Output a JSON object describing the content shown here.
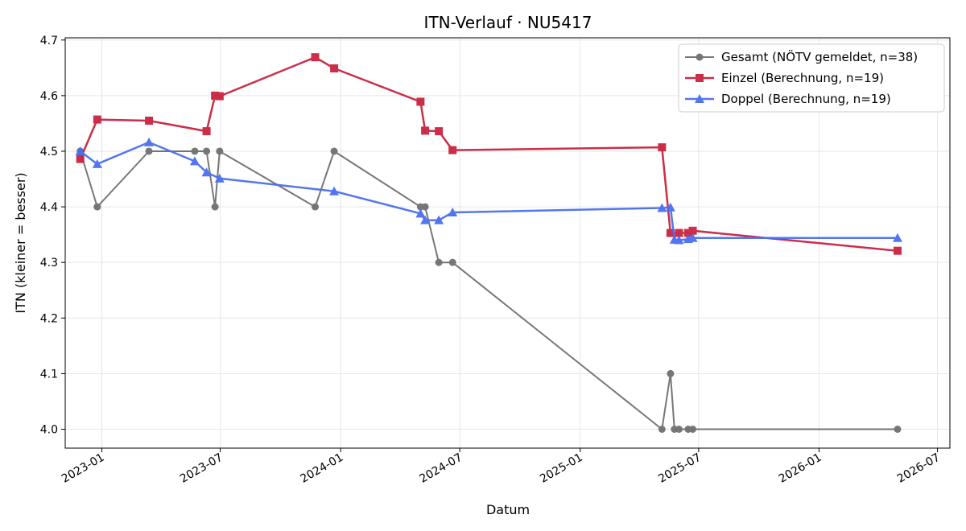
{
  "chart_data": {
    "type": "line",
    "title": "ITN-Verlauf · NU5417",
    "xlabel": "Datum",
    "ylabel": "ITN  (kleiner = besser)",
    "x_axis": "date",
    "xlim": [
      "2022-11-06",
      "2026-07-20"
    ],
    "ylim": [
      3.966,
      4.704
    ],
    "x_ticks": [
      {
        "date": "2023-01-01",
        "label": "2023-01"
      },
      {
        "date": "2023-07-01",
        "label": "2023-07"
      },
      {
        "date": "2024-01-01",
        "label": "2024-01"
      },
      {
        "date": "2024-07-01",
        "label": "2024-07"
      },
      {
        "date": "2025-01-01",
        "label": "2025-01"
      },
      {
        "date": "2025-07-01",
        "label": "2025-07"
      },
      {
        "date": "2026-01-01",
        "label": "2026-01"
      },
      {
        "date": "2026-07-01",
        "label": "2026-07"
      }
    ],
    "y_ticks": [
      {
        "value": 4.0,
        "label": "4.0"
      },
      {
        "value": 4.1,
        "label": "4.1"
      },
      {
        "value": 4.2,
        "label": "4.2"
      },
      {
        "value": 4.3,
        "label": "4.3"
      },
      {
        "value": 4.4,
        "label": "4.4"
      },
      {
        "value": 4.5,
        "label": "4.5"
      },
      {
        "value": 4.6,
        "label": "4.6"
      },
      {
        "value": 4.7,
        "label": "4.7"
      }
    ],
    "grid": true,
    "legend_position": "top-right",
    "series": [
      {
        "name": "Gesamt (NÖTV gemeldet, n=38)",
        "color": "#4a4a4a",
        "marker": "circle",
        "points": [
          {
            "x": "2022-11-29",
            "y": 4.5
          },
          {
            "x": "2022-12-25",
            "y": 4.4
          },
          {
            "x": "2023-03-14",
            "y": 4.5
          },
          {
            "x": "2023-05-23",
            "y": 4.5
          },
          {
            "x": "2023-06-10",
            "y": 4.5
          },
          {
            "x": "2023-06-23",
            "y": 4.4
          },
          {
            "x": "2023-06-30",
            "y": 4.5
          },
          {
            "x": "2023-11-23",
            "y": 4.4
          },
          {
            "x": "2023-12-22",
            "y": 4.5
          },
          {
            "x": "2024-05-02",
            "y": 4.4
          },
          {
            "x": "2024-05-09",
            "y": 4.4
          },
          {
            "x": "2024-05-30",
            "y": 4.3
          },
          {
            "x": "2024-06-20",
            "y": 4.3
          },
          {
            "x": "2025-05-06",
            "y": 4.0
          },
          {
            "x": "2025-05-19",
            "y": 4.1
          },
          {
            "x": "2025-05-25",
            "y": 4.0
          },
          {
            "x": "2025-06-01",
            "y": 4.0
          },
          {
            "x": "2025-06-15",
            "y": 4.0
          },
          {
            "x": "2025-06-22",
            "y": 4.0
          },
          {
            "x": "2026-05-01",
            "y": 4.0
          }
        ]
      },
      {
        "name": "Einzel (Berechnung, n=19)",
        "color": "#c8233f",
        "marker": "square",
        "points": [
          {
            "x": "2022-11-29",
            "y": 4.486
          },
          {
            "x": "2022-12-25",
            "y": 4.557
          },
          {
            "x": "2023-03-14",
            "y": 4.555
          },
          {
            "x": "2023-06-10",
            "y": 4.536
          },
          {
            "x": "2023-06-23",
            "y": 4.6
          },
          {
            "x": "2023-06-30",
            "y": 4.599
          },
          {
            "x": "2023-11-23",
            "y": 4.669
          },
          {
            "x": "2023-12-22",
            "y": 4.649
          },
          {
            "x": "2024-05-02",
            "y": 4.589
          },
          {
            "x": "2024-05-09",
            "y": 4.537
          },
          {
            "x": "2024-05-30",
            "y": 4.536
          },
          {
            "x": "2024-06-20",
            "y": 4.502
          },
          {
            "x": "2025-05-06",
            "y": 4.507
          },
          {
            "x": "2025-05-19",
            "y": 4.353
          },
          {
            "x": "2025-06-01",
            "y": 4.353
          },
          {
            "x": "2025-06-15",
            "y": 4.353
          },
          {
            "x": "2025-06-22",
            "y": 4.357
          },
          {
            "x": "2026-05-01",
            "y": 4.321
          }
        ]
      },
      {
        "name": "Doppel (Berechnung, n=19)",
        "color": "#4a6ff0",
        "marker": "triangle",
        "points": [
          {
            "x": "2022-11-29",
            "y": 4.5
          },
          {
            "x": "2022-12-25",
            "y": 4.477
          },
          {
            "x": "2023-03-14",
            "y": 4.516
          },
          {
            "x": "2023-05-23",
            "y": 4.482
          },
          {
            "x": "2023-06-10",
            "y": 4.462
          },
          {
            "x": "2023-06-30",
            "y": 4.451
          },
          {
            "x": "2023-12-22",
            "y": 4.428
          },
          {
            "x": "2024-05-02",
            "y": 4.388
          },
          {
            "x": "2024-05-09",
            "y": 4.376
          },
          {
            "x": "2024-05-30",
            "y": 4.376
          },
          {
            "x": "2024-06-20",
            "y": 4.39
          },
          {
            "x": "2025-05-06",
            "y": 4.398
          },
          {
            "x": "2025-05-19",
            "y": 4.399
          },
          {
            "x": "2025-05-25",
            "y": 4.341
          },
          {
            "x": "2025-06-01",
            "y": 4.34
          },
          {
            "x": "2025-06-15",
            "y": 4.342
          },
          {
            "x": "2025-06-22",
            "y": 4.344
          },
          {
            "x": "2026-05-01",
            "y": 4.344
          }
        ]
      }
    ]
  }
}
